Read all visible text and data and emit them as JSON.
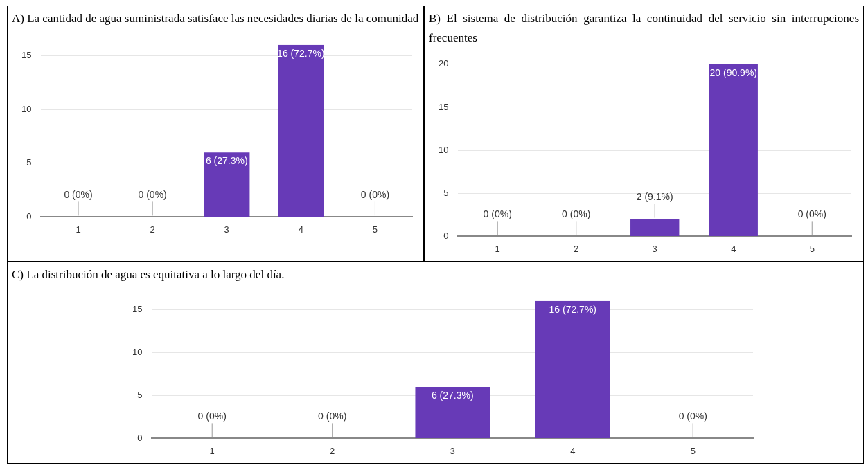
{
  "chart_data": [
    {
      "type": "bar",
      "title": "A) La cantidad de agua suministrada satisface las necesidades diarias de la comunidad",
      "categories": [
        "1",
        "2",
        "3",
        "4",
        "5"
      ],
      "values": [
        0,
        0,
        6,
        16,
        0
      ],
      "value_labels": [
        "0 (0%)",
        "0 (0%)",
        "6 (27.3%)",
        "16 (72.7%)",
        "0 (0%)"
      ],
      "color": "#673ab7",
      "ylim": [
        0,
        16
      ],
      "yticks": [
        0,
        5,
        10,
        15
      ],
      "grid": "y"
    },
    {
      "type": "bar",
      "title": "B) El sistema de distribución garantiza la continuidad del servicio sin interrupciones frecuentes",
      "categories": [
        "1",
        "2",
        "3",
        "4",
        "5"
      ],
      "values": [
        0,
        0,
        2,
        20,
        0
      ],
      "value_labels": [
        "0 (0%)",
        "0 (0%)",
        "2 (9.1%)",
        "20 (90.9%)",
        "0 (0%)"
      ],
      "color": "#673ab7",
      "ylim": [
        0,
        20
      ],
      "yticks": [
        0,
        5,
        10,
        15,
        20
      ],
      "grid": "y"
    },
    {
      "type": "bar",
      "title": "C) La distribución de agua es equitativa a lo largo del día.",
      "categories": [
        "1",
        "2",
        "3",
        "4",
        "5"
      ],
      "values": [
        0,
        0,
        6,
        16,
        0
      ],
      "value_labels": [
        "0 (0%)",
        "0 (0%)",
        "6 (27.3%)",
        "16 (72.7%)",
        "0 (0%)"
      ],
      "color": "#673ab7",
      "ylim": [
        0,
        16
      ],
      "yticks": [
        0,
        5,
        10,
        15
      ],
      "grid": "y"
    }
  ]
}
